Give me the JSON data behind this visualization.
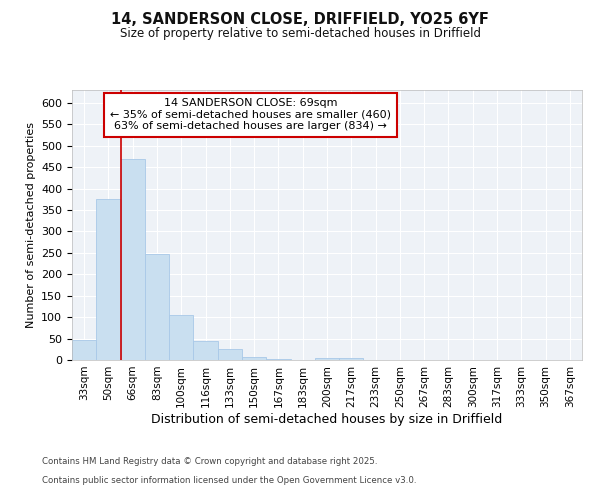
{
  "title_line1": "14, SANDERSON CLOSE, DRIFFIELD, YO25 6YF",
  "title_line2": "Size of property relative to semi-detached houses in Driffield",
  "xlabel": "Distribution of semi-detached houses by size in Driffield",
  "ylabel": "Number of semi-detached properties",
  "bins": [
    "33sqm",
    "50sqm",
    "66sqm",
    "83sqm",
    "100sqm",
    "116sqm",
    "133sqm",
    "150sqm",
    "167sqm",
    "183sqm",
    "200sqm",
    "217sqm",
    "233sqm",
    "250sqm",
    "267sqm",
    "283sqm",
    "300sqm",
    "317sqm",
    "333sqm",
    "350sqm",
    "367sqm"
  ],
  "values": [
    47,
    375,
    470,
    248,
    105,
    45,
    25,
    8,
    3,
    1,
    5,
    5,
    0,
    0,
    0,
    0,
    0,
    1,
    0,
    0,
    1
  ],
  "bar_color": "#c9dff0",
  "bar_edge_color": "#a8c8e8",
  "red_line_x": 2.0,
  "red_line_label": "14 SANDERSON CLOSE: 69sqm",
  "annotation_line1": "← 35% of semi-detached houses are smaller (460)",
  "annotation_line2": "63% of semi-detached houses are larger (834) →",
  "annotation_box_color": "#ffffff",
  "annotation_box_edge": "#cc0000",
  "footer_line1": "Contains HM Land Registry data © Crown copyright and database right 2025.",
  "footer_line2": "Contains public sector information licensed under the Open Government Licence v3.0.",
  "ylim": [
    0,
    630
  ],
  "yticks": [
    0,
    50,
    100,
    150,
    200,
    250,
    300,
    350,
    400,
    450,
    500,
    550,
    600
  ],
  "background_color": "#eef2f7",
  "grid_color": "#ffffff",
  "fig_bg": "#ffffff"
}
